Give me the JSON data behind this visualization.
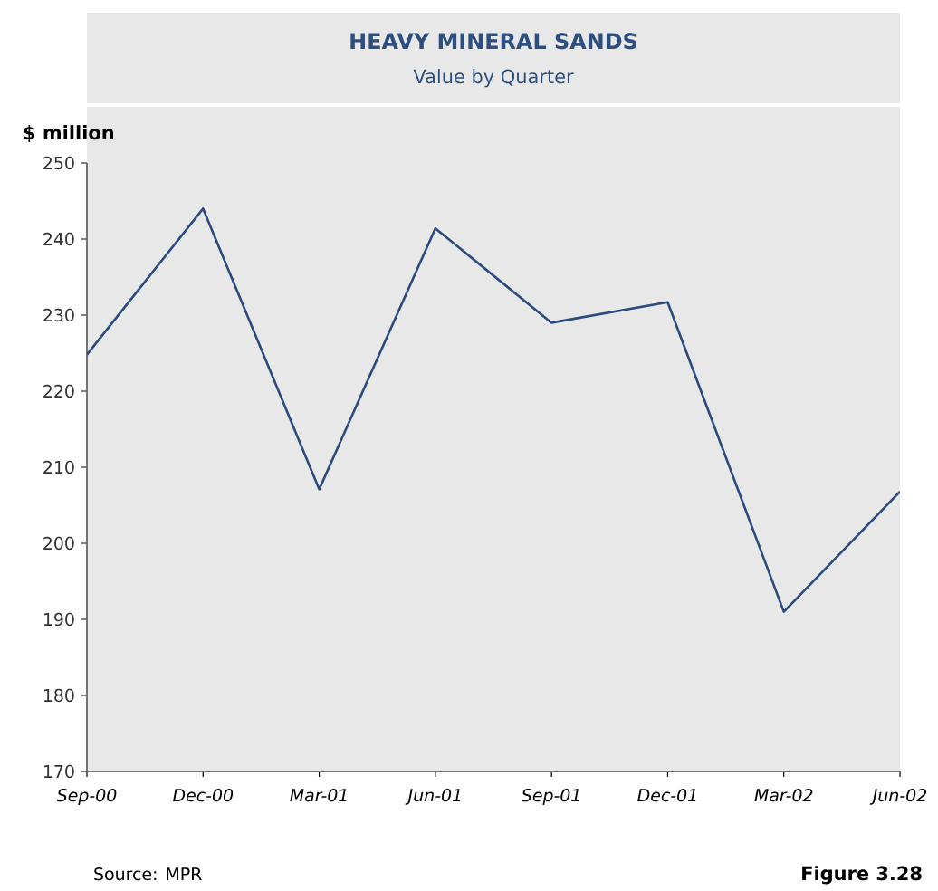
{
  "chart_data": {
    "type": "line",
    "title": "HEAVY MINERAL SANDS",
    "subtitle": "Value by Quarter",
    "ylabel": "$ million",
    "categories": [
      "Sep-00",
      "Dec-00",
      "Mar-01",
      "Jun-01",
      "Sep-01",
      "Dec-01",
      "Mar-02",
      "Jun-02"
    ],
    "series": [
      {
        "color": "#2b4a7e",
        "values": [
          224.8,
          244.0,
          207.1,
          241.4,
          229.0,
          231.7,
          191.0,
          206.8
        ]
      }
    ],
    "ylim": [
      170,
      250
    ],
    "yticks": [
      170,
      180,
      190,
      200,
      210,
      220,
      230,
      240,
      250
    ],
    "grid": false,
    "marker": "none",
    "line_style": "solid",
    "annotations": [
      "Source:  MPR",
      "Figure 3.28"
    ]
  }
}
